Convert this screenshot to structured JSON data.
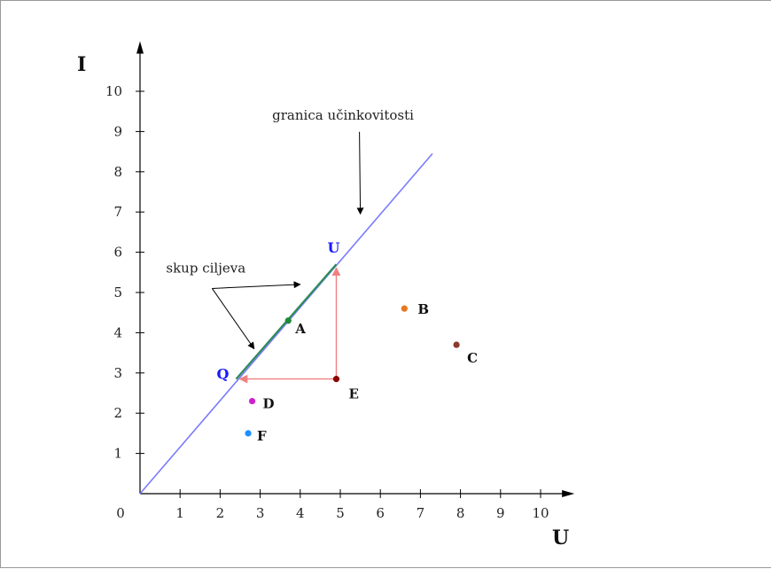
{
  "chart_data": {
    "type": "scatter",
    "title": "",
    "xlabel": "U",
    "ylabel": "I",
    "xlim": [
      0,
      10.8
    ],
    "ylim": [
      0,
      11.2
    ],
    "x_ticks": [
      0,
      1,
      2,
      3,
      4,
      5,
      6,
      7,
      8,
      9,
      10
    ],
    "y_ticks": [
      1,
      2,
      3,
      4,
      5,
      6,
      7,
      8,
      9,
      10
    ],
    "grid": false,
    "frontier": {
      "label": "granica učinkovitosti",
      "from": [
        0,
        0
      ],
      "to": [
        7.3,
        8.45
      ],
      "color": "#7b7bff"
    },
    "target_set": {
      "label": "skup ciljeva",
      "from": [
        2.4,
        2.85
      ],
      "to": [
        4.9,
        5.7
      ],
      "color": "#2e8b57"
    },
    "frontier_points": [
      {
        "name": "Q",
        "x": 2.4,
        "y": 2.85,
        "color": "#1a1aff"
      },
      {
        "name": "U",
        "x": 4.9,
        "y": 5.7,
        "color": "#1a1aff"
      }
    ],
    "points": [
      {
        "name": "A",
        "x": 3.7,
        "y": 4.3,
        "color": "#1f8a3a"
      },
      {
        "name": "B",
        "x": 6.6,
        "y": 4.6,
        "color": "#e87722"
      },
      {
        "name": "C",
        "x": 7.9,
        "y": 3.7,
        "color": "#8b3a2e"
      },
      {
        "name": "D",
        "x": 2.8,
        "y": 2.3,
        "color": "#cc22cc"
      },
      {
        "name": "E",
        "x": 4.9,
        "y": 2.85,
        "color": "#8b0000"
      },
      {
        "name": "F",
        "x": 2.7,
        "y": 1.5,
        "color": "#1e90ff"
      }
    ],
    "projections": [
      {
        "from": "E",
        "to": "Q",
        "color": "#f08080"
      },
      {
        "from": "E",
        "to": "U",
        "color": "#f08080"
      }
    ],
    "annotations": [
      {
        "text": "granica učinkovitosti",
        "x": 3.3,
        "y": 9.3,
        "arrow_to": [
          5.5,
          6.95
        ]
      },
      {
        "text": "skup ciljeva",
        "x": 0.65,
        "y": 5.5,
        "arrows_to": [
          [
            4.0,
            5.2
          ],
          [
            2.85,
            3.6
          ]
        ]
      }
    ]
  }
}
